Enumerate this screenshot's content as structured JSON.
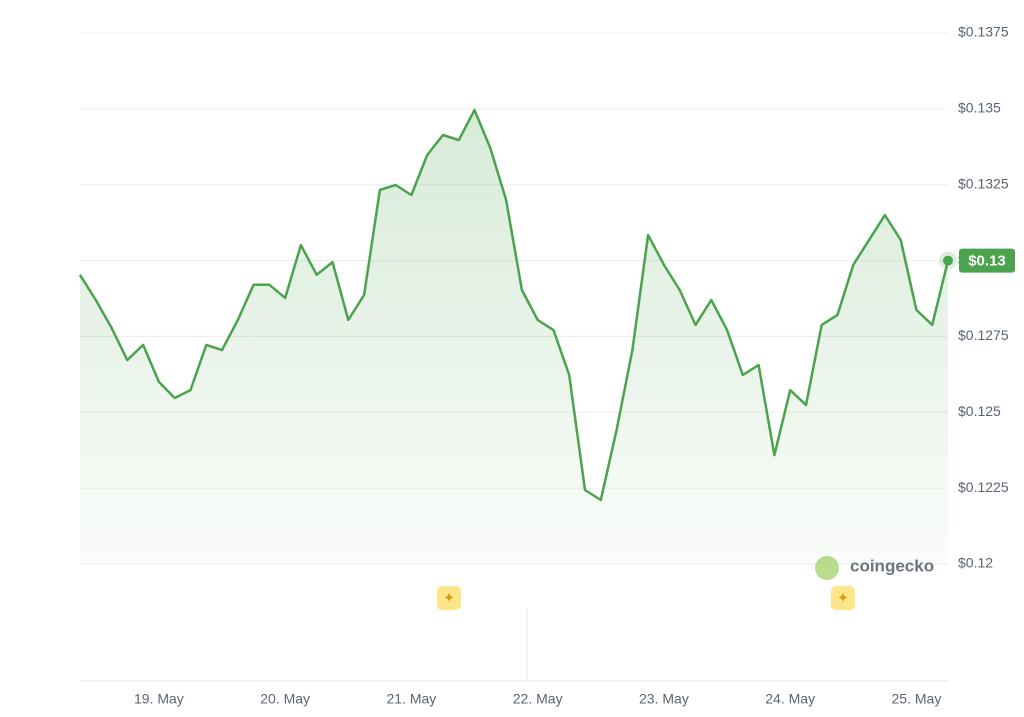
{
  "chart_data": {
    "type": "line",
    "watermark": "coingecko",
    "categories": [
      null,
      null,
      null,
      null,
      null,
      "19. May",
      null,
      null,
      null,
      null,
      null,
      null,
      null,
      "20. May",
      null,
      null,
      null,
      null,
      null,
      null,
      null,
      "21. May",
      null,
      null,
      null,
      null,
      null,
      null,
      null,
      "22. May",
      null,
      null,
      null,
      null,
      null,
      null,
      null,
      "23. May",
      null,
      null,
      null,
      null,
      null,
      null,
      null,
      "24. May",
      null,
      null,
      null,
      null,
      null,
      null,
      null,
      "25. May",
      null,
      null
    ],
    "values": [
      0.12953,
      0.1287,
      0.12778,
      0.12672,
      0.12722,
      0.126,
      0.12547,
      0.12573,
      0.12722,
      0.12705,
      0.12804,
      0.1292,
      0.1292,
      0.12877,
      0.13051,
      0.12953,
      0.12995,
      0.12804,
      0.12887,
      0.13233,
      0.13249,
      0.13216,
      0.13348,
      0.13414,
      0.13397,
      0.13496,
      0.13371,
      0.132,
      0.12903,
      0.12804,
      0.12771,
      0.12623,
      0.12244,
      0.12211,
      0.12442,
      0.12705,
      0.13084,
      0.12986,
      0.12903,
      0.12788,
      0.1287,
      0.12771,
      0.12623,
      0.12656,
      0.12359,
      0.12573,
      0.12524,
      0.12788,
      0.12821,
      0.12986,
      0.13068,
      0.1315,
      0.13068,
      0.12837,
      0.12788,
      0.13
    ],
    "value_labels": [
      null,
      null,
      null,
      null,
      null,
      null,
      null,
      null,
      null,
      null,
      null,
      null,
      null,
      null,
      null,
      null,
      null,
      null,
      null,
      null,
      null,
      null,
      null,
      null,
      null,
      null,
      null,
      null,
      null,
      null,
      null,
      null,
      null,
      null,
      null,
      null,
      null,
      null,
      null,
      null,
      null,
      null,
      null,
      null,
      null,
      null,
      null,
      null,
      null,
      null,
      null,
      null,
      null,
      null,
      null,
      "$0.13"
    ],
    "color": "#4ba34e",
    "ylim": [
      0.12,
      0.1375
    ],
    "yticks": [
      {
        "value": 0.12,
        "label": "$0.12"
      },
      {
        "value": 0.1225,
        "label": "$0.1225"
      },
      {
        "value": 0.125,
        "label": "$0.125"
      },
      {
        "value": 0.1275,
        "label": "$0.1275"
      },
      {
        "value": 0.13,
        "label": "$0.13"
      },
      {
        "value": 0.1325,
        "label": "$0.1325"
      },
      {
        "value": 0.135,
        "label": "$0.135"
      },
      {
        "value": 0.1375,
        "label": "$0.1375"
      }
    ],
    "grid": true
  }
}
